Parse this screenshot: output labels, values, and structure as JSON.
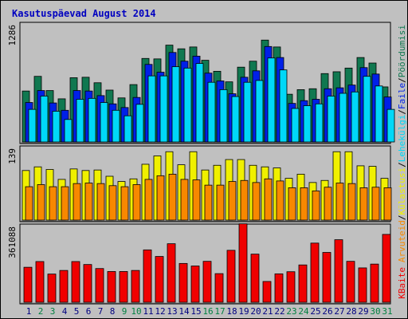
{
  "title": "Kasutuspäevad August 2014",
  "colors": {
    "background": "#c0c0c0",
    "title_text": "#0000c0",
    "hits": "#107850",
    "files": "#0020e8",
    "pages": "#00d8f8",
    "visits": "#f0f000",
    "sites": "#f88800",
    "kbytes": "#f00000",
    "weekend_label": "#008040",
    "weekday_label": "#000080"
  },
  "labels": {
    "hits": "Pöördumisi",
    "files": "Faile",
    "pages": "Lehekülgi",
    "visits": "Külastusi",
    "sites": "Arvuteid",
    "kbytes": "KBaite",
    "sep1": "/",
    "sep2": "/",
    "sep3": "/",
    "sep4": "/"
  },
  "chart_data": [
    {
      "type": "bar",
      "title": "Kasutuspäevad August 2014",
      "panel": "top",
      "x": [
        "1",
        "2",
        "3",
        "4",
        "5",
        "6",
        "7",
        "8",
        "9",
        "10",
        "11",
        "12",
        "13",
        "14",
        "15",
        "16",
        "17",
        "18",
        "19",
        "20",
        "21",
        "22",
        "23",
        "24",
        "25",
        "26",
        "27",
        "28",
        "29",
        "30",
        "31"
      ],
      "weekend_days": [
        "2",
        "3",
        "9",
        "10",
        "16",
        "17",
        "23",
        "24",
        "30",
        "31"
      ],
      "ylabel": "1286",
      "ylim": [
        0,
        1286
      ],
      "series": [
        {
          "name": "Pöördumisi",
          "values": [
            555,
            715,
            560,
            470,
            700,
            705,
            645,
            565,
            480,
            625,
            910,
            905,
            1055,
            1015,
            1035,
            890,
            770,
            655,
            815,
            880,
            1110,
            1035,
            520,
            570,
            580,
            745,
            765,
            805,
            920,
            860,
            600
          ]
        },
        {
          "name": "Faile",
          "values": [
            430,
            560,
            425,
            345,
            560,
            555,
            505,
            415,
            375,
            485,
            845,
            760,
            975,
            880,
            935,
            750,
            665,
            525,
            705,
            775,
            1040,
            920,
            420,
            450,
            465,
            580,
            590,
            620,
            810,
            740,
            490
          ]
        },
        {
          "name": "Lehekülgi",
          "values": [
            355,
            500,
            335,
            245,
            465,
            475,
            430,
            345,
            285,
            410,
            720,
            720,
            820,
            805,
            855,
            650,
            570,
            495,
            650,
            670,
            915,
            785,
            365,
            395,
            415,
            500,
            530,
            545,
            715,
            610,
            355
          ]
        }
      ]
    },
    {
      "type": "bar",
      "panel": "middle",
      "x": [
        "1",
        "2",
        "3",
        "4",
        "5",
        "6",
        "7",
        "8",
        "9",
        "10",
        "11",
        "12",
        "13",
        "14",
        "15",
        "16",
        "17",
        "18",
        "19",
        "20",
        "21",
        "22",
        "23",
        "24",
        "25",
        "26",
        "27",
        "28",
        "29",
        "30",
        "31"
      ],
      "ylabel": "139",
      "ylim": [
        0,
        139
      ],
      "series": [
        {
          "name": "Külastusi",
          "values": [
            95,
            102,
            97,
            78,
            98,
            95,
            96,
            84,
            74,
            79,
            107,
            123,
            131,
            106,
            131,
            96,
            105,
            116,
            116,
            105,
            102,
            100,
            80,
            88,
            72,
            76,
            131,
            131,
            104,
            103,
            80
          ]
        },
        {
          "name": "Arvuteid",
          "values": [
            64,
            68,
            64,
            64,
            70,
            71,
            70,
            66,
            64,
            68,
            78,
            85,
            88,
            78,
            77,
            67,
            67,
            74,
            76,
            72,
            79,
            75,
            62,
            62,
            56,
            63,
            71,
            70,
            62,
            63,
            62
          ]
        }
      ]
    },
    {
      "type": "bar",
      "panel": "bottom",
      "x": [
        "1",
        "2",
        "3",
        "4",
        "5",
        "6",
        "7",
        "8",
        "9",
        "10",
        "11",
        "12",
        "13",
        "14",
        "15",
        "16",
        "17",
        "18",
        "19",
        "20",
        "21",
        "22",
        "23",
        "24",
        "25",
        "26",
        "27",
        "28",
        "29",
        "30",
        "31"
      ],
      "ylabel": "361088",
      "ylim": [
        0,
        361088
      ],
      "series": [
        {
          "name": "KBaite",
          "values": [
            165000,
            192000,
            133000,
            150000,
            192000,
            178000,
            159000,
            145000,
            145000,
            150000,
            247000,
            216000,
            276000,
            183000,
            171000,
            193000,
            135000,
            245000,
            370000,
            227000,
            98000,
            134000,
            144000,
            176000,
            279000,
            235000,
            295000,
            193000,
            162000,
            180000,
            320000
          ]
        }
      ]
    }
  ]
}
